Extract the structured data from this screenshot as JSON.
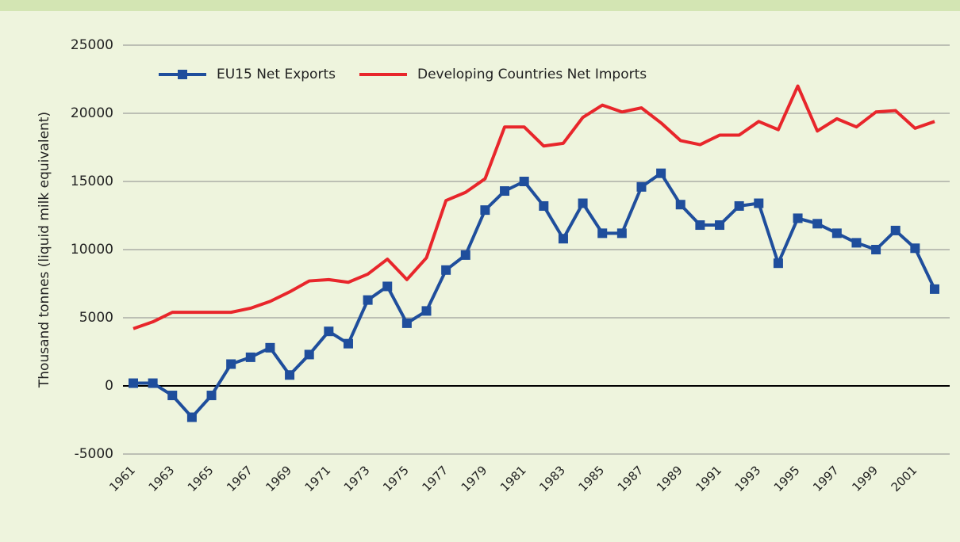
{
  "chart_data": {
    "type": "line",
    "y_axis_label": "Thousand tonnes (liquid milk equivalent)",
    "categories": [
      "1961",
      null,
      "1963",
      null,
      "1965",
      null,
      "1967",
      null,
      "1969",
      null,
      "1971",
      null,
      "1973",
      null,
      "1975",
      null,
      "1977",
      null,
      "1979",
      null,
      "1981",
      null,
      "1983",
      null,
      "1985",
      null,
      "1987",
      null,
      "1989",
      null,
      "1991",
      null,
      "1993",
      null,
      "1995",
      null,
      "1997",
      null,
      "1999",
      null,
      "2001",
      null
    ],
    "series": [
      {
        "name": "EU15 Net Exports",
        "color": "#1f4e9c",
        "markers": true,
        "values": [
          200,
          200,
          -700,
          -2300,
          -700,
          1600,
          2100,
          2800,
          800,
          2300,
          4000,
          3100,
          6300,
          7300,
          4600,
          5500,
          8500,
          9600,
          12900,
          14300,
          15000,
          13200,
          10800,
          13400,
          11200,
          11200,
          14600,
          15600,
          13300,
          11800,
          11800,
          13200,
          13400,
          9000,
          12300,
          11900,
          11200,
          10500,
          10000,
          11400,
          10100,
          7100
        ]
      },
      {
        "name": "Developing Countries Net Imports",
        "color": "#e8262b",
        "markers": false,
        "values": [
          4200,
          4700,
          5400,
          5400,
          5400,
          5400,
          5700,
          6200,
          6900,
          7700,
          7800,
          7600,
          8200,
          9300,
          7800,
          9400,
          13600,
          14200,
          15200,
          19000,
          19000,
          17600,
          17800,
          19700,
          20600,
          20100,
          20400,
          19300,
          18000,
          17700,
          18400,
          18400,
          19400,
          18800,
          22000,
          18700,
          19600,
          19000,
          20100,
          20200,
          18900,
          19400
        ]
      }
    ],
    "ylim": [
      -5000,
      25000
    ],
    "yticks": [
      -5000,
      0,
      5000,
      10000,
      15000,
      20000,
      25000
    ],
    "grid": true
  }
}
